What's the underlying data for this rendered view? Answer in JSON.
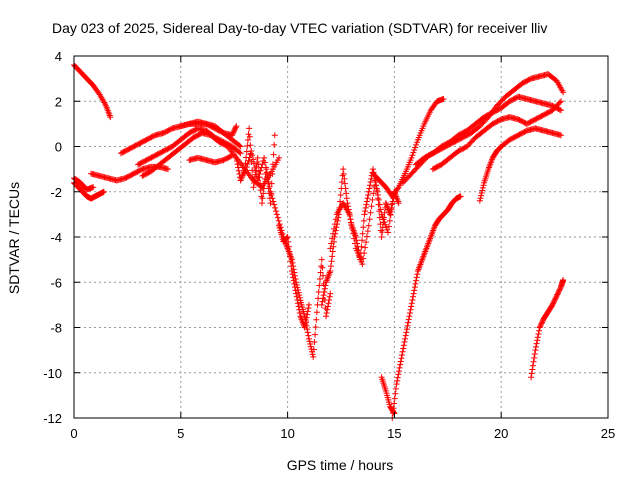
{
  "chart_data": {
    "type": "scatter",
    "title": "Day 023 of 2025, Sidereal Day-to-day VTEC variation (SDTVAR) for receiver lliv",
    "xlabel": "GPS time / hours",
    "ylabel": "SDTVAR / TECUs",
    "xlim": [
      0,
      25
    ],
    "ylim": [
      -12,
      4
    ],
    "xticks": [
      0,
      5,
      10,
      15,
      20,
      25
    ],
    "yticks": [
      -12,
      -10,
      -8,
      -6,
      -4,
      -2,
      0,
      2,
      4
    ],
    "grid": true,
    "marker": "plus",
    "color": "#ff0000",
    "series": [
      {
        "x": [
          0.0,
          0.3,
          0.6,
          0.9,
          1.2,
          1.5,
          1.7
        ],
        "y": [
          3.6,
          3.3,
          3.0,
          2.7,
          2.3,
          1.8,
          1.3
        ]
      },
      {
        "x": [
          0.0,
          0.2,
          0.4,
          0.6,
          0.8,
          1.0,
          1.2,
          1.4
        ],
        "y": [
          -1.6,
          -1.8,
          -2.0,
          -2.2,
          -2.3,
          -2.2,
          -2.1,
          -2.0
        ]
      },
      {
        "x": [
          0.0,
          0.3,
          0.6,
          0.9
        ],
        "y": [
          -1.4,
          -1.6,
          -1.9,
          -1.8
        ]
      },
      {
        "x": [
          0.8,
          1.2,
          1.6,
          2.0,
          2.4,
          2.8,
          3.2,
          3.6,
          4.0,
          4.4
        ],
        "y": [
          -1.2,
          -1.3,
          -1.4,
          -1.5,
          -1.4,
          -1.2,
          -1.0,
          -0.9,
          -0.9,
          -1.0
        ]
      },
      {
        "x": [
          2.2,
          2.6,
          3.0,
          3.4,
          3.8,
          4.2,
          4.6,
          5.0,
          5.4,
          5.8,
          6.2,
          6.6,
          7.0,
          7.4,
          7.8
        ],
        "y": [
          -0.3,
          -0.1,
          0.1,
          0.3,
          0.5,
          0.6,
          0.8,
          0.9,
          1.0,
          1.0,
          1.0,
          0.9,
          0.6,
          0.3,
          0.0
        ]
      },
      {
        "x": [
          3.0,
          3.4,
          3.8,
          4.2,
          4.6,
          5.0,
          5.4,
          5.8,
          6.2,
          6.6,
          7.0,
          7.4,
          7.8
        ],
        "y": [
          -0.8,
          -0.6,
          -0.4,
          -0.2,
          0.0,
          0.3,
          0.6,
          0.8,
          0.7,
          0.4,
          0.2,
          0.0,
          -0.3
        ]
      },
      {
        "x": [
          3.2,
          3.6,
          4.0,
          4.4,
          4.8,
          5.2,
          5.6,
          6.0,
          6.4,
          6.8,
          7.2,
          7.6,
          8.0,
          8.4,
          8.8,
          9.2,
          9.6
        ],
        "y": [
          -1.3,
          -1.1,
          -0.8,
          -0.5,
          -0.2,
          0.1,
          0.4,
          0.6,
          0.5,
          0.2,
          0.0,
          -0.5,
          -1.0,
          -1.5,
          -1.8,
          -1.2,
          -0.5
        ]
      },
      {
        "x": [
          5.0,
          5.4,
          5.8,
          6.2,
          6.6,
          7.0,
          7.4,
          7.6
        ],
        "y": [
          0.9,
          1.0,
          1.1,
          1.0,
          0.8,
          0.6,
          0.5,
          0.9
        ]
      },
      {
        "x": [
          5.4,
          5.8,
          6.2,
          6.6,
          7.0,
          7.4
        ],
        "y": [
          -0.6,
          -0.5,
          -0.6,
          -0.7,
          -0.6,
          -0.4
        ]
      },
      {
        "x": [
          7.6,
          7.8,
          8.0,
          8.2,
          8.4,
          8.6,
          8.8,
          9.0,
          9.2,
          9.4
        ],
        "y": [
          -0.5,
          -1.5,
          -1.0,
          0.8,
          -1.8,
          -0.5,
          -2.5,
          -1.0,
          -2.5,
          0.5
        ]
      },
      {
        "x": [
          8.0,
          8.3,
          8.6,
          8.9,
          9.2,
          9.5,
          9.8,
          10.0,
          10.2,
          10.4,
          10.6,
          10.8,
          11.0,
          11.2,
          11.4,
          11.6,
          11.8,
          12.0
        ],
        "y": [
          -1.2,
          -0.2,
          -1.5,
          -0.5,
          -2.0,
          -3.0,
          -4.0,
          -4.5,
          -5.0,
          -6.0,
          -6.8,
          -7.5,
          -8.5,
          -9.3,
          -7.0,
          -5.0,
          -7.5,
          -6.5
        ]
      },
      {
        "x": [
          9.6,
          9.8,
          10.0,
          10.2,
          10.4,
          10.6,
          10.8,
          11.0
        ],
        "y": [
          -3.5,
          -4.2,
          -4.0,
          -5.5,
          -6.5,
          -7.5,
          -8.0,
          -7.0
        ]
      },
      {
        "x": [
          11.6,
          11.8,
          12.0,
          12.2,
          12.4,
          12.6,
          12.8,
          13.0,
          13.2,
          13.4,
          13.6,
          13.8,
          14.0,
          14.2,
          14.4,
          14.6,
          14.8,
          15.0,
          15.2
        ],
        "y": [
          -7.0,
          -6.0,
          -5.5,
          -4.0,
          -3.0,
          -1.0,
          -2.5,
          -3.5,
          -4.0,
          -5.0,
          -3.0,
          -2.0,
          -1.0,
          -2.0,
          -4.0,
          -2.5,
          -3.0,
          -2.0,
          -2.5
        ]
      },
      {
        "x": [
          12.0,
          12.3,
          12.6,
          12.9,
          13.2,
          13.5,
          13.8,
          14.1,
          14.4,
          14.7,
          15.0
        ],
        "y": [
          -4.5,
          -3.0,
          -2.5,
          -3.0,
          -4.5,
          -5.2,
          -3.5,
          -1.5,
          -3.0,
          -3.8,
          -2.0
        ]
      },
      {
        "x": [
          14.0,
          14.3,
          14.6,
          14.9,
          15.2,
          15.5,
          15.8,
          16.1,
          16.4,
          16.7,
          17.0,
          17.3
        ],
        "y": [
          -1.2,
          -1.5,
          -1.8,
          -2.2,
          -1.8,
          -1.2,
          -0.5,
          0.3,
          1.0,
          1.6,
          2.0,
          2.1
        ]
      },
      {
        "x": [
          15.4,
          15.8,
          16.2,
          16.6,
          17.0,
          17.4,
          17.8,
          18.2,
          18.6,
          19.0,
          19.4,
          19.8,
          20.2,
          20.6,
          21.0,
          21.4,
          21.8,
          22.2,
          22.6,
          22.9
        ],
        "y": [
          -1.6,
          -1.2,
          -0.8,
          -0.4,
          -0.2,
          0.0,
          0.2,
          0.4,
          0.6,
          0.9,
          1.3,
          1.8,
          2.2,
          2.5,
          2.8,
          3.0,
          3.1,
          3.2,
          2.9,
          2.4
        ]
      },
      {
        "x": [
          16.0,
          16.4,
          16.8,
          17.2,
          17.6,
          18.0,
          18.4,
          18.8,
          19.2,
          19.6,
          20.0,
          20.4,
          20.8,
          21.2,
          21.6,
          22.0,
          22.4,
          22.8
        ],
        "y": [
          -0.8,
          -0.5,
          -0.3,
          0.0,
          0.2,
          0.5,
          0.7,
          1.0,
          1.3,
          1.5,
          1.7,
          2.0,
          2.2,
          2.1,
          2.0,
          1.9,
          1.8,
          1.6
        ]
      },
      {
        "x": [
          16.8,
          17.2,
          17.6,
          18.0,
          18.4,
          18.8,
          19.2,
          19.6,
          20.0,
          20.4,
          20.8,
          21.2,
          21.6,
          22.0,
          22.4,
          22.8
        ],
        "y": [
          -1.0,
          -0.8,
          -0.5,
          -0.2,
          0.0,
          0.4,
          0.7,
          1.0,
          1.2,
          1.3,
          1.2,
          1.0,
          1.2,
          1.4,
          1.6,
          2.0
        ]
      },
      {
        "x": [
          14.9,
          15.1,
          15.3,
          15.5,
          15.7,
          15.9,
          16.1,
          16.3,
          16.5,
          16.7,
          16.9,
          17.1,
          17.3,
          17.5,
          17.7,
          17.9,
          18.1
        ],
        "y": [
          -12.0,
          -10.5,
          -9.5,
          -8.5,
          -7.5,
          -6.5,
          -5.5,
          -5.0,
          -4.5,
          -4.0,
          -3.5,
          -3.2,
          -3.0,
          -2.8,
          -2.5,
          -2.3,
          -2.2
        ]
      },
      {
        "x": [
          14.4,
          14.6,
          14.8,
          15.0
        ],
        "y": [
          -10.2,
          -10.8,
          -11.5,
          -11.8
        ]
      },
      {
        "x": [
          19.0,
          19.2,
          19.4,
          19.6,
          19.8,
          20.0,
          20.4,
          20.8,
          21.2,
          21.6,
          22.0,
          22.4,
          22.8
        ],
        "y": [
          -2.4,
          -1.6,
          -1.0,
          -0.5,
          -0.2,
          0.0,
          0.3,
          0.5,
          0.7,
          0.8,
          0.7,
          0.6,
          0.5
        ]
      },
      {
        "x": [
          21.4,
          21.6,
          21.8,
          22.0,
          22.2,
          22.4,
          22.6,
          22.8,
          22.9
        ],
        "y": [
          -10.2,
          -9.0,
          -8.0,
          -7.6,
          -7.3,
          -7.0,
          -6.6,
          -6.2,
          -5.9
        ]
      }
    ]
  }
}
